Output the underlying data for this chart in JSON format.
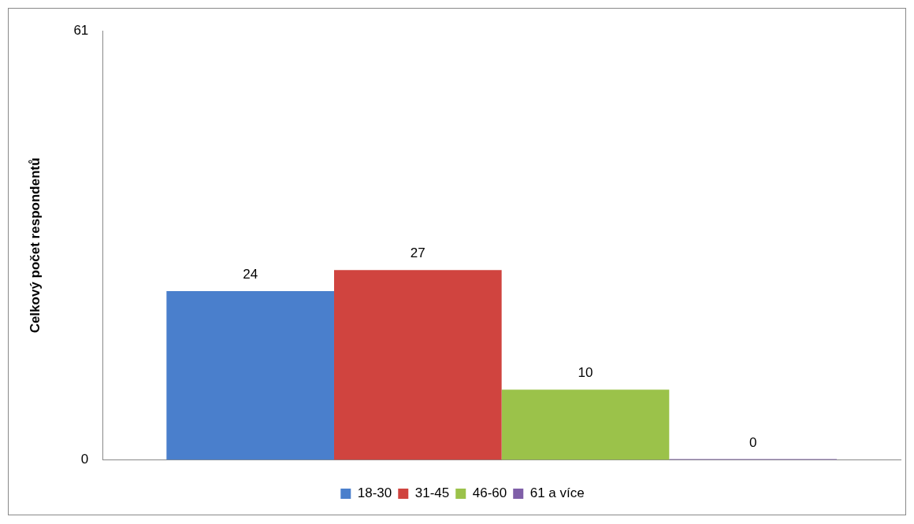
{
  "chart_data": {
    "type": "bar",
    "ylabel": "Celkový počet respondentů",
    "categories": [
      null
    ],
    "series": [
      {
        "name": "18-30",
        "color": "#4a7fcc",
        "values": [
          24
        ]
      },
      {
        "name": "31-45",
        "color": "#d0443f",
        "values": [
          27
        ]
      },
      {
        "name": "46-60",
        "color": "#9bc24a",
        "values": [
          10
        ]
      },
      {
        "name": "61 a více",
        "color": "#7f5fa8",
        "values": [
          0
        ]
      }
    ],
    "ylim": [
      0,
      61
    ],
    "yticks": [
      0,
      61
    ],
    "grid": false,
    "legend": "bottom",
    "data_labels": true
  }
}
